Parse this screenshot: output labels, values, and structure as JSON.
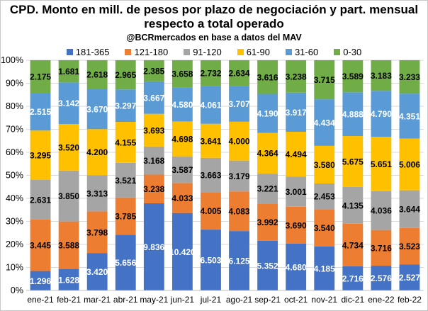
{
  "chart_data": {
    "type": "bar",
    "stacked": true,
    "normalized": true,
    "title": "CPD. Monto en mill. de pesos por plazo de negociación y part. mensual",
    "title_line2": "respecto a total operado",
    "subtitle": "@BCRmercados en base a datos del MAV",
    "categories": [
      "ene-21",
      "feb-21",
      "mar-21",
      "abr-21",
      "may-21",
      "jun-21",
      "jul-21",
      "ago-21",
      "sep-21",
      "oct-21",
      "nov-21",
      "dic-21",
      "ene-22",
      "feb-22"
    ],
    "ylim": [
      0,
      100
    ],
    "y_ticks": [
      "0%",
      "10%",
      "20%",
      "30%",
      "40%",
      "50%",
      "60%",
      "70%",
      "80%",
      "90%",
      "100%"
    ],
    "grid": true,
    "legend_position": "top",
    "series": [
      {
        "name": "181-365",
        "color": "#4472c4",
        "values": [
          1296,
          1628,
          3420,
          5656,
          9836,
          10420,
          6503,
          6125,
          5352,
          4680,
          4185,
          2716,
          2576,
          2527
        ],
        "labels": [
          "1.296",
          "1.628",
          "3.420",
          "5.656",
          "9.836",
          "10.420",
          "6.503",
          "6.125",
          "5.352",
          "4.680",
          "4.185",
          "2.716",
          "2.576",
          "2.527"
        ]
      },
      {
        "name": "121-180",
        "color": "#ed7d31",
        "values": [
          3445,
          3588,
          3798,
          3785,
          3238,
          4033,
          4005,
          4083,
          3992,
          3690,
          3540,
          4734,
          3716,
          3523
        ],
        "labels": [
          "3.445",
          "3.588",
          "3.798",
          "3.785",
          "3.238",
          "4.033",
          "4.005",
          "4.083",
          "3.992",
          "3.690",
          "3.540",
          "4.734",
          "3.716",
          "3.523"
        ]
      },
      {
        "name": "91-120",
        "color": "#a5a5a5",
        "values": [
          2631,
          3850,
          3313,
          3521,
          3168,
          3587,
          3663,
          3179,
          3221,
          3001,
          2453,
          4135,
          4036,
          3644
        ],
        "labels": [
          "2.631",
          "3.850",
          "3.313",
          "3.521",
          "3.168",
          "3.587",
          "3.663",
          "3.179",
          "3.221",
          "3.001",
          "2.453",
          "4.135",
          "4.036",
          "3.644"
        ]
      },
      {
        "name": "61-90",
        "color": "#ffc000",
        "values": [
          3295,
          3520,
          4200,
          4155,
          3693,
          4698,
          3641,
          4000,
          4364,
          4494,
          3580,
          5675,
          5651,
          5006
        ],
        "labels": [
          "3.295",
          "3.520",
          "4.200",
          "4.155",
          "3.693",
          "4.698",
          "3.641",
          "4.000",
          "4.364",
          "4.494",
          "3.580",
          "5.675",
          "5.651",
          "5.006"
        ]
      },
      {
        "name": "31-60",
        "color": "#5b9bd5",
        "values": [
          2515,
          3142,
          3670,
          3297,
          3667,
          4580,
          4061,
          3707,
          4190,
          3917,
          4434,
          4888,
          4790,
          4351
        ],
        "labels": [
          "2.515",
          "3.142",
          "3.670",
          "3.297",
          "3.667",
          "4.580",
          "4.061",
          "3.707",
          "4.190",
          "3.917",
          "4.434",
          "4.888",
          "4.790",
          "4.351"
        ]
      },
      {
        "name": "0-30",
        "color": "#70ad47",
        "values": [
          2175,
          1681,
          2618,
          2965,
          2385,
          3658,
          2732,
          2634,
          3616,
          3238,
          3715,
          3589,
          3183,
          3233
        ],
        "labels": [
          "2.175",
          "1.681",
          "2.618",
          "2.965",
          "2.385",
          "3.658",
          "2.732",
          "2.634",
          "3.616",
          "3.238",
          "3.715",
          "3.589",
          "3.183",
          "3.233"
        ]
      }
    ]
  }
}
